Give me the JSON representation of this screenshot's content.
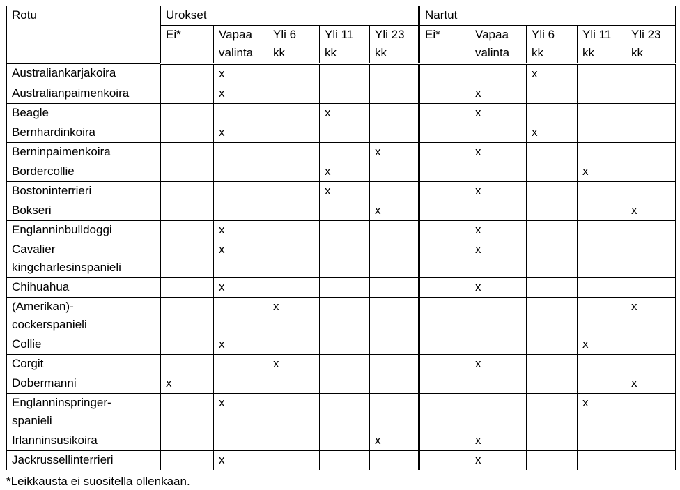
{
  "table": {
    "header": {
      "breed": "Rotu",
      "groups": [
        "Urokset",
        "Nartut"
      ],
      "subcolumns": [
        "Ei*",
        "Vapaa\nvalinta",
        "Yli 6\nkk",
        "Yli 11\nkk",
        "Yli 23\nkk"
      ]
    },
    "rows": [
      {
        "breed": "Australiankarjakoira",
        "marks": [
          "",
          "x",
          "",
          "",
          "",
          "",
          "",
          "x",
          "",
          ""
        ]
      },
      {
        "breed": "Australianpaimenkoira",
        "marks": [
          "",
          "x",
          "",
          "",
          "",
          "",
          "x",
          "",
          "",
          ""
        ]
      },
      {
        "breed": "Beagle",
        "marks": [
          "",
          "",
          "",
          "x",
          "",
          "",
          "x",
          "",
          "",
          ""
        ]
      },
      {
        "breed": "Bernhardinkoira",
        "marks": [
          "",
          "x",
          "",
          "",
          "",
          "",
          "",
          "x",
          "",
          ""
        ]
      },
      {
        "breed": "Berninpaimenkoira",
        "marks": [
          "",
          "",
          "",
          "",
          "x",
          "",
          "x",
          "",
          "",
          ""
        ]
      },
      {
        "breed": "Bordercollie",
        "marks": [
          "",
          "",
          "",
          "x",
          "",
          "",
          "",
          "",
          "x",
          ""
        ]
      },
      {
        "breed": "Bostoninterrieri",
        "marks": [
          "",
          "",
          "",
          "x",
          "",
          "",
          "x",
          "",
          "",
          ""
        ]
      },
      {
        "breed": "Bokseri",
        "marks": [
          "",
          "",
          "",
          "",
          "x",
          "",
          "",
          "",
          "",
          "x"
        ]
      },
      {
        "breed": "Englanninbulldoggi",
        "marks": [
          "",
          "x",
          "",
          "",
          "",
          "",
          "x",
          "",
          "",
          ""
        ]
      },
      {
        "breed": "Cavalier\nkingcharlesinspanieli",
        "marks": [
          "",
          "x",
          "",
          "",
          "",
          "",
          "x",
          "",
          "",
          ""
        ]
      },
      {
        "breed": "Chihuahua",
        "marks": [
          "",
          "x",
          "",
          "",
          "",
          "",
          "x",
          "",
          "",
          ""
        ]
      },
      {
        "breed": "(Amerikan)-\ncockerspanieli",
        "marks": [
          "",
          "",
          "x",
          "",
          "",
          "",
          "",
          "",
          "",
          "x"
        ]
      },
      {
        "breed": "Collie",
        "marks": [
          "",
          "x",
          "",
          "",
          "",
          "",
          "",
          "",
          "x",
          ""
        ]
      },
      {
        "breed": "Corgit",
        "marks": [
          "",
          "",
          "x",
          "",
          "",
          "",
          "x",
          "",
          "",
          ""
        ]
      },
      {
        "breed": "Dobermanni",
        "marks": [
          "x",
          "",
          "",
          "",
          "",
          "",
          "",
          "",
          "",
          "x"
        ]
      },
      {
        "breed": "Englanninspringer-\nspanieli",
        "marks": [
          "",
          "x",
          "",
          "",
          "",
          "",
          "",
          "",
          "x",
          ""
        ]
      },
      {
        "breed": "Irlanninsusikoira",
        "marks": [
          "",
          "",
          "",
          "",
          "x",
          "",
          "x",
          "",
          "",
          ""
        ]
      },
      {
        "breed": "Jackrussellinterrieri",
        "marks": [
          "",
          "x",
          "",
          "",
          "",
          "",
          "x",
          "",
          "",
          ""
        ]
      }
    ]
  },
  "footnote": "*Leikkausta ei suositella ollenkaan."
}
